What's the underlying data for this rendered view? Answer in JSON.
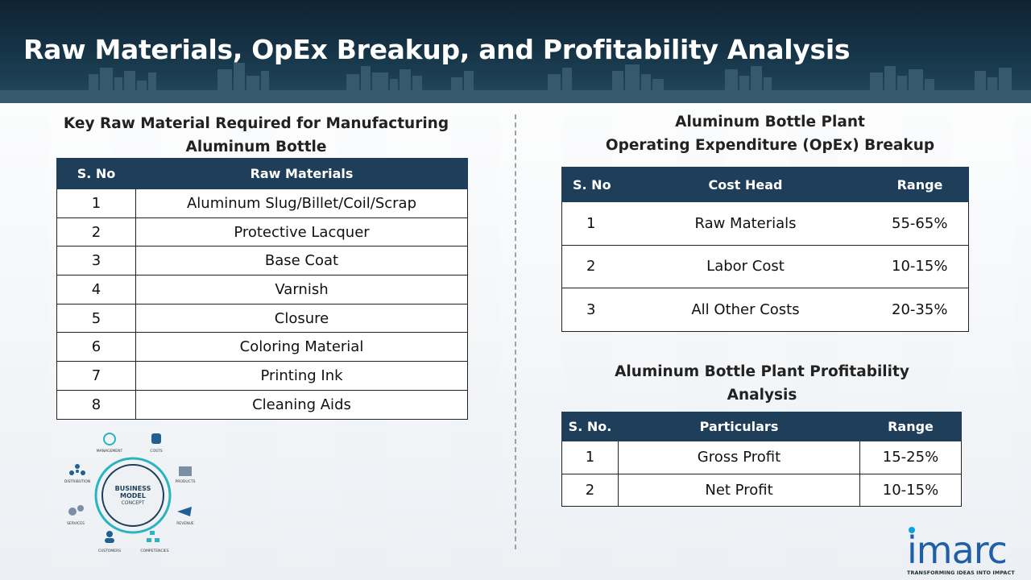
{
  "page": {
    "title": "Raw Materials, OpEx Breakup, and Profitability Analysis"
  },
  "raw_materials": {
    "title_line1": "Key Raw Material Required for Manufacturing",
    "title_line2": "Aluminum Bottle",
    "headers": [
      "S. No",
      "Raw Materials"
    ],
    "rows": [
      [
        "1",
        "Aluminum Slug/Billet/Coil/Scrap"
      ],
      [
        "2",
        "Protective Lacquer"
      ],
      [
        "3",
        "Base Coat"
      ],
      [
        "4",
        "Varnish"
      ],
      [
        "5",
        "Closure"
      ],
      [
        "6",
        "Coloring Material"
      ],
      [
        "7",
        "Printing Ink"
      ],
      [
        "8",
        "Cleaning Aids"
      ]
    ]
  },
  "opex": {
    "title_line1": "Aluminum Bottle Plant",
    "title_line2": "Operating Expenditure (OpEx) Breakup",
    "headers": [
      "S. No",
      "Cost Head",
      "Range"
    ],
    "rows": [
      [
        "1",
        "Raw Materials",
        "55-65%"
      ],
      [
        "2",
        "Labor Cost",
        "10-15%"
      ],
      [
        "3",
        "All Other Costs",
        "20-35%"
      ]
    ]
  },
  "profitability": {
    "title_line1": "Aluminum Bottle Plant Profitability",
    "title_line2": "Analysis",
    "headers": [
      "S. No.",
      "Particulars",
      "Range"
    ],
    "rows": [
      [
        "1",
        "Gross Profit",
        "15-25%"
      ],
      [
        "2",
        "Net Profit",
        "10-15%"
      ]
    ]
  },
  "business_model": {
    "center_line1": "BUSINESS",
    "center_line2": "MODEL",
    "center_line3": "CONCEPT",
    "labels": {
      "management": "MANAGEMENT",
      "costs": "COSTS",
      "products": "PRODUCTS",
      "revenue": "REVENUE",
      "competencies": "COMPETENCIES",
      "customers": "CUSTOMERS",
      "services": "SERVICES",
      "distribution": "DISTRIBUTION"
    }
  },
  "logo": {
    "word": "imarc",
    "tagline": "TRANSFORMING IDEAS INTO IMPACT"
  },
  "colors": {
    "header_bg": "#17364a",
    "table_header": "#1f3e5a",
    "logo_blue": "#1e5fa8",
    "accent_teal": "#2bb3c0"
  }
}
